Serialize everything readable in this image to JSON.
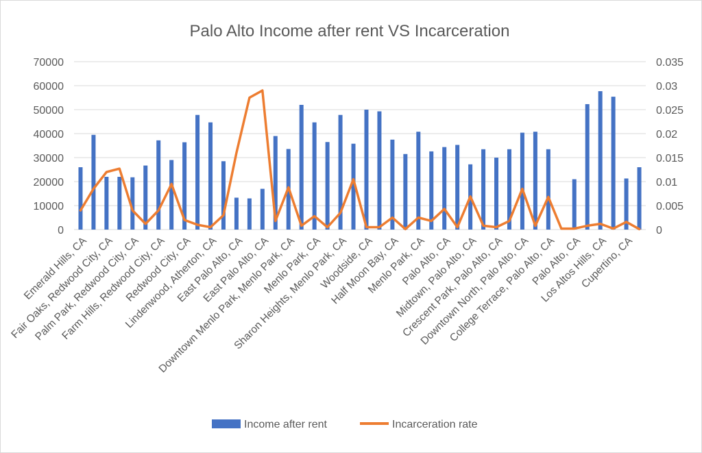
{
  "chart_data": {
    "type": "bar",
    "title": "Palo Alto Income after rent VS Incarceration",
    "categories": [
      "Emerald Hills, CA",
      "",
      "Fair Oaks, Redwood City, CA",
      "",
      "Palm Park, Redwood City, CA",
      "",
      "Farm Hills, Redwood City, CA",
      "",
      "Redwood City, CA",
      "",
      "Lindenwood, Atherton, CA",
      "",
      "East Palo Alto, CA",
      "",
      "East Palo Alto, CA",
      "",
      "Downtown Menlo Park, Menlo Park, CA",
      "",
      "Menlo Park, CA",
      "",
      "Sharon Heights, Menlo Park, CA",
      "",
      "Woodside, CA",
      "",
      "Half Moon Bay, CA",
      "",
      "Menlo Park, CA",
      "",
      "Palo Alto, CA",
      "",
      "Midtown, Palo Alto, CA",
      "",
      "Crescent Park, Palo Alto, CA",
      "",
      "Downtown North, Palo Alto, CA",
      "",
      "College Terrace, Palo Alto, CA",
      "",
      "Palo Alto, CA",
      "",
      "Los Altos Hills, CA",
      "",
      "Cupertino, CA",
      ""
    ],
    "series": [
      {
        "name": "Income after rent",
        "axis": "primary",
        "kind": "bar",
        "color": "#4472c4",
        "values": [
          26000,
          39500,
          22000,
          22000,
          21800,
          26700,
          37200,
          29000,
          36400,
          47800,
          44700,
          28500,
          13300,
          13000,
          17000,
          39000,
          33600,
          52000,
          44700,
          36500,
          47800,
          35800,
          50000,
          49300,
          37500,
          31500,
          40800,
          32600,
          34400,
          35300,
          27200,
          33500,
          30000,
          33500,
          40400,
          40800,
          33500,
          0,
          21000,
          52300,
          57700,
          55400,
          21300,
          26000
        ]
      },
      {
        "name": "Incarceration rate",
        "axis": "secondary",
        "kind": "line",
        "color": "#ed7d31",
        "values": [
          0.004,
          0.0085,
          0.012,
          0.0127,
          0.004,
          0.0012,
          0.004,
          0.0095,
          0.002,
          0.001,
          0.0005,
          0.003,
          0.016,
          0.0275,
          0.029,
          0.0018,
          0.0088,
          0.0008,
          0.0028,
          0.0005,
          0.0035,
          0.0105,
          0.0005,
          0.0005,
          0.0025,
          0.0001,
          0.0025,
          0.0018,
          0.0043,
          0.0005,
          0.0069,
          0.0008,
          0.0005,
          0.0018,
          0.0085,
          0.0008,
          0.0068,
          0.0002,
          0.0002,
          0.0008,
          0.0012,
          0.0002,
          0.0016,
          0.0001
        ]
      }
    ],
    "y_left": {
      "ylim": [
        0,
        70000
      ],
      "ticks": [
        "0",
        "10000",
        "20000",
        "30000",
        "40000",
        "50000",
        "60000",
        "70000"
      ]
    },
    "y_right": {
      "ylim": [
        0,
        0.035
      ],
      "ticks": [
        "0",
        "0.005",
        "0.01",
        "0.015",
        "0.02",
        "0.025",
        "0.03",
        "0.035"
      ]
    },
    "grid": true,
    "legend_position": "bottom"
  }
}
